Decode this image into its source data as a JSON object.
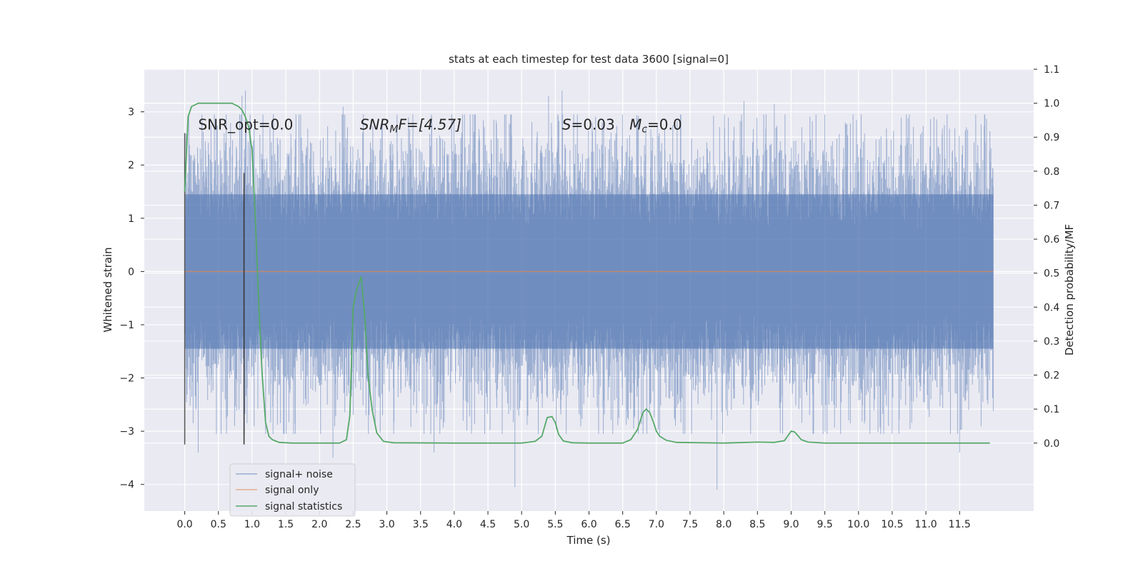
{
  "chart_data": {
    "type": "line",
    "title": "stats at each timestep for test data 3600 [signal=0]",
    "xlabel": "Time (s)",
    "ylabel": "Whitened strain",
    "y2label": "Detection probability/MF",
    "xlim": [
      -0.6,
      12.6
    ],
    "ylim": [
      -4.5,
      3.8
    ],
    "y2lim": [
      -0.2,
      1.1
    ],
    "x_ticks": [
      0.0,
      0.5,
      1.0,
      1.5,
      2.0,
      2.5,
      3.0,
      3.5,
      4.0,
      4.5,
      5.0,
      5.5,
      6.0,
      6.5,
      7.0,
      7.5,
      8.0,
      8.5,
      9.0,
      9.5,
      10.0,
      10.5,
      11.0,
      11.5
    ],
    "x_tick_labels": [
      "0.0",
      "0.5",
      "1.0",
      "1.5",
      "2.0",
      "2.5",
      "3.0",
      "3.5",
      "4.0",
      "4.5",
      "5.0",
      "5.5",
      "6.0",
      "6.5",
      "7.0",
      "7.5",
      "8.0",
      "8.5",
      "9.0",
      "9.5",
      "10.0",
      "10.5",
      "11.0",
      "11.5"
    ],
    "y_ticks": [
      -4,
      -3,
      -2,
      -1,
      0,
      1,
      2,
      3
    ],
    "y_tick_labels": [
      "−4",
      "−3",
      "−2",
      "−1",
      "0",
      "1",
      "2",
      "3"
    ],
    "y2_ticks": [
      0.0,
      0.1,
      0.2,
      0.3,
      0.4,
      0.5,
      0.6,
      0.7,
      0.8,
      0.9,
      1.0,
      1.1
    ],
    "y2_tick_labels": [
      "0.0",
      "0.1",
      "0.2",
      "0.3",
      "0.4",
      "0.5",
      "0.6",
      "0.7",
      "0.8",
      "0.9",
      "1.0",
      "1.1"
    ],
    "grid": true,
    "legend_position": "lower-left",
    "series": [
      {
        "name": "signal+ noise",
        "color": "#4c72b0",
        "kind": "noise",
        "x_range": [
          0.0,
          12.0
        ],
        "typical_range": [
          -1.5,
          1.5
        ],
        "extremes": [
          {
            "x": 0.08,
            "y": 2.2
          },
          {
            "x": 0.2,
            "y": -3.4
          },
          {
            "x": 0.85,
            "y": 3.3
          },
          {
            "x": 0.9,
            "y": 3.4
          },
          {
            "x": 2.2,
            "y": -3.5
          },
          {
            "x": 2.35,
            "y": 3.1
          },
          {
            "x": 3.7,
            "y": -3.4
          },
          {
            "x": 4.9,
            "y": -4.05
          },
          {
            "x": 5.4,
            "y": 3.3
          },
          {
            "x": 5.6,
            "y": 3.4
          },
          {
            "x": 7.9,
            "y": -4.1
          },
          {
            "x": 8.3,
            "y": 3.2
          },
          {
            "x": 8.75,
            "y": 3.15
          },
          {
            "x": 11.5,
            "y": -3.4
          }
        ]
      },
      {
        "name": "signal only",
        "color": "#dd8452",
        "x": [
          0.0,
          12.0
        ],
        "y": [
          0.0,
          0.0
        ]
      },
      {
        "name": "signal statistics",
        "color": "#55a868",
        "axis": "right",
        "x": [
          0.0,
          0.05,
          0.1,
          0.2,
          0.3,
          0.4,
          0.5,
          0.6,
          0.7,
          0.8,
          0.85,
          0.9,
          0.95,
          1.0,
          1.05,
          1.1,
          1.15,
          1.2,
          1.25,
          1.3,
          1.4,
          1.6,
          2.0,
          2.3,
          2.4,
          2.45,
          2.5,
          2.55,
          2.62,
          2.68,
          2.72,
          2.78,
          2.85,
          2.95,
          3.1,
          4.0,
          5.0,
          5.2,
          5.3,
          5.38,
          5.45,
          5.5,
          5.55,
          5.62,
          5.75,
          6.0,
          6.5,
          6.62,
          6.72,
          6.8,
          6.85,
          6.9,
          6.95,
          7.0,
          7.05,
          7.15,
          7.3,
          8.0,
          8.5,
          8.75,
          8.9,
          9.0,
          9.05,
          9.1,
          9.15,
          9.25,
          9.5,
          10.0,
          11.0,
          11.5,
          11.95
        ],
        "y": [
          0.74,
          0.96,
          0.99,
          1.0,
          1.0,
          1.0,
          1.0,
          1.0,
          1.0,
          0.99,
          0.98,
          0.96,
          0.93,
          0.86,
          0.65,
          0.4,
          0.2,
          0.06,
          0.02,
          0.01,
          0.002,
          0.0,
          0.0,
          0.0,
          0.01,
          0.08,
          0.4,
          0.45,
          0.49,
          0.35,
          0.2,
          0.1,
          0.03,
          0.005,
          0.001,
          0.0,
          0.0,
          0.005,
          0.02,
          0.075,
          0.078,
          0.06,
          0.025,
          0.006,
          0.001,
          0.0,
          0.0,
          0.01,
          0.04,
          0.09,
          0.1,
          0.09,
          0.065,
          0.035,
          0.02,
          0.008,
          0.002,
          0.0,
          0.003,
          0.002,
          0.007,
          0.035,
          0.033,
          0.022,
          0.01,
          0.003,
          0.0,
          0.0,
          0.0,
          0.0,
          0.0
        ]
      }
    ],
    "vertical_lines": [
      {
        "x": 0.0,
        "y_from": -3.25,
        "y_to": 2.6,
        "color": "#555555"
      },
      {
        "x": 0.88,
        "y_from": -3.25,
        "y_to": 1.85,
        "color": "#333333"
      }
    ],
    "annotations": [
      {
        "text": "SNR_opt=0.0",
        "x": 0.2,
        "y": 2.67
      },
      {
        "text": "SNR",
        "sub": "M",
        "rest": "F=[4.57]",
        "italic": true,
        "x": 2.6,
        "y": 2.67
      },
      {
        "text": "S",
        "rest": "=0.03",
        "x": 5.6,
        "y": 2.67,
        "italic": true
      },
      {
        "text": "M",
        "sub": "c",
        "rest": "=0.0",
        "x": 6.6,
        "y": 2.67,
        "italic": true
      }
    ]
  }
}
